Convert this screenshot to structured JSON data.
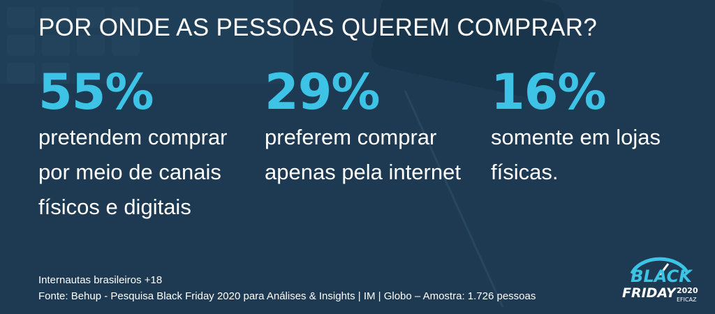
{
  "header": {
    "title": "POR ONDE AS PESSOAS QUEREM COMPRAR?"
  },
  "stats": [
    {
      "value": "55%",
      "lines": [
        "pretendem comprar",
        "por meio de canais",
        "físicos e digitais"
      ]
    },
    {
      "value": "29%",
      "lines": [
        "preferem comprar",
        "apenas pela internet"
      ]
    },
    {
      "value": "16%",
      "lines": [
        "somente em lojas",
        "físicas."
      ]
    }
  ],
  "footer": {
    "lines": [
      "Internautas brasileiros +18",
      "Fonte: Behup - Pesquisa Black Friday 2020 para Análises & Insights | IM | Globo – Amostra: 1.726 pessoas"
    ]
  },
  "logo": {
    "line1": "BLACK",
    "line2": "FRIDAY",
    "year": "2020",
    "brand": "EFICAZ"
  }
}
